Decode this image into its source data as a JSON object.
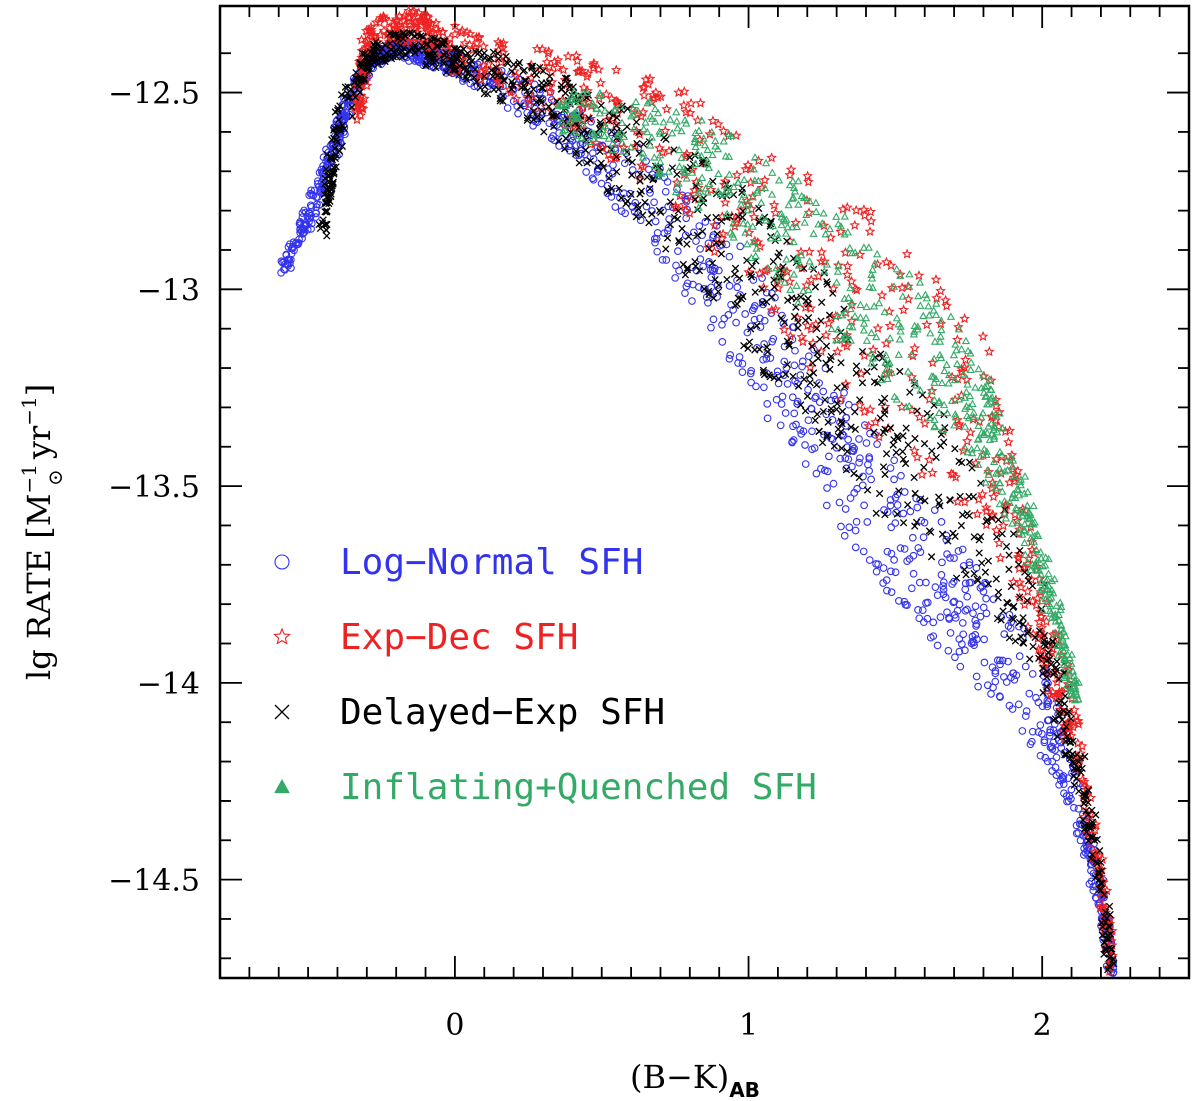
{
  "chart_data": {
    "type": "scatter",
    "title": "",
    "xlabel": "(B−K)",
    "xlabel_sub": "AB",
    "ylabel_main": "lg RATE [M",
    "ylabel_sup1": "−1",
    "ylabel_sub": "⊙",
    "ylabel_yr": " yr",
    "ylabel_sup2": "−1",
    "ylabel_end": "]",
    "xlim": [
      -0.8,
      2.5
    ],
    "ylim": [
      -14.75,
      -12.28
    ],
    "xticks": [
      0,
      1,
      2
    ],
    "xtick_labels": [
      "0",
      "1",
      "2"
    ],
    "yticks": [
      -12.5,
      -13,
      -13.5,
      -14,
      -14.5
    ],
    "ytick_labels": [
      "−12.5",
      "−13",
      "−13.5",
      "−14",
      "−14.5"
    ],
    "grid": false,
    "legend_position": "center-left",
    "series": [
      {
        "name": "Log−Normal SFH",
        "marker": "circle",
        "color": "#3333ee",
        "trend": [
          [
            -0.58,
            -12.94
          ],
          [
            -0.5,
            -12.82
          ],
          [
            -0.42,
            -12.66
          ],
          [
            -0.36,
            -12.52
          ],
          [
            -0.3,
            -12.43
          ],
          [
            -0.25,
            -12.4
          ],
          [
            -0.2,
            -12.39
          ],
          [
            -0.1,
            -12.4
          ],
          [
            0,
            -12.43
          ],
          [
            0.2,
            -12.5
          ],
          [
            0.4,
            -12.6
          ],
          [
            0.6,
            -12.73
          ],
          [
            0.8,
            -12.89
          ],
          [
            1.0,
            -13.08
          ],
          [
            1.2,
            -13.3
          ],
          [
            1.4,
            -13.52
          ],
          [
            1.6,
            -13.7
          ],
          [
            1.8,
            -13.88
          ],
          [
            2.0,
            -14.05
          ],
          [
            2.1,
            -14.25
          ],
          [
            2.2,
            -14.55
          ],
          [
            2.24,
            -14.76
          ]
        ],
        "spread": [
          0.02,
          0.03,
          0.03,
          0.02,
          0.02,
          0.02,
          0.02,
          0.03,
          0.03,
          0.05,
          0.07,
          0.1,
          0.13,
          0.16,
          0.18,
          0.18,
          0.17,
          0.15,
          0.13,
          0.08,
          0.04,
          0.01
        ]
      },
      {
        "name": "Exp−Dec SFH",
        "marker": "star",
        "color": "#ee2222",
        "trend": [
          [
            -0.33,
            -12.55
          ],
          [
            -0.3,
            -12.38
          ],
          [
            -0.2,
            -12.33
          ],
          [
            -0.1,
            -12.35
          ],
          [
            0,
            -12.4
          ],
          [
            0.2,
            -12.45
          ],
          [
            0.4,
            -12.52
          ],
          [
            0.6,
            -12.6
          ],
          [
            0.8,
            -12.7
          ],
          [
            1.0,
            -12.84
          ],
          [
            1.2,
            -12.98
          ],
          [
            1.4,
            -13.12
          ],
          [
            1.6,
            -13.26
          ],
          [
            1.8,
            -13.4
          ],
          [
            1.9,
            -13.6
          ],
          [
            2.0,
            -13.85
          ],
          [
            2.1,
            -14.1
          ],
          [
            2.2,
            -14.5
          ],
          [
            2.24,
            -14.74
          ]
        ],
        "spread": [
          0.04,
          0.04,
          0.05,
          0.06,
          0.07,
          0.09,
          0.12,
          0.16,
          0.2,
          0.25,
          0.3,
          0.33,
          0.33,
          0.3,
          0.22,
          0.15,
          0.1,
          0.05,
          0.02
        ]
      },
      {
        "name": "Delayed−Exp SFH",
        "marker": "cross",
        "color": "#000000",
        "trend": [
          [
            -0.45,
            -12.85
          ],
          [
            -0.4,
            -12.6
          ],
          [
            -0.3,
            -12.42
          ],
          [
            -0.2,
            -12.38
          ],
          [
            0,
            -12.42
          ],
          [
            0.2,
            -12.49
          ],
          [
            0.4,
            -12.58
          ],
          [
            0.6,
            -12.7
          ],
          [
            0.8,
            -12.84
          ],
          [
            1.0,
            -13.0
          ],
          [
            1.2,
            -13.18
          ],
          [
            1.4,
            -13.35
          ],
          [
            1.6,
            -13.5
          ],
          [
            1.8,
            -13.65
          ],
          [
            2.0,
            -13.9
          ],
          [
            2.1,
            -14.15
          ],
          [
            2.2,
            -14.5
          ],
          [
            2.24,
            -14.78
          ]
        ],
        "spread": [
          0.04,
          0.06,
          0.03,
          0.04,
          0.05,
          0.08,
          0.12,
          0.16,
          0.2,
          0.24,
          0.27,
          0.27,
          0.25,
          0.22,
          0.15,
          0.1,
          0.05,
          0.02
        ]
      },
      {
        "name": "Inflating+Quenched SFH",
        "marker": "triangle",
        "color": "#33aa66",
        "trend": [
          [
            0.35,
            -12.55
          ],
          [
            0.6,
            -12.6
          ],
          [
            0.8,
            -12.68
          ],
          [
            1.0,
            -12.8
          ],
          [
            1.2,
            -12.93
          ],
          [
            1.4,
            -13.06
          ],
          [
            1.6,
            -13.2
          ],
          [
            1.75,
            -13.3
          ],
          [
            1.85,
            -13.42
          ],
          [
            1.95,
            -13.62
          ],
          [
            2.05,
            -13.85
          ],
          [
            2.12,
            -14.05
          ]
        ],
        "spread": [
          0.06,
          0.1,
          0.14,
          0.17,
          0.19,
          0.2,
          0.2,
          0.18,
          0.15,
          0.1,
          0.06,
          0.04
        ]
      }
    ]
  }
}
